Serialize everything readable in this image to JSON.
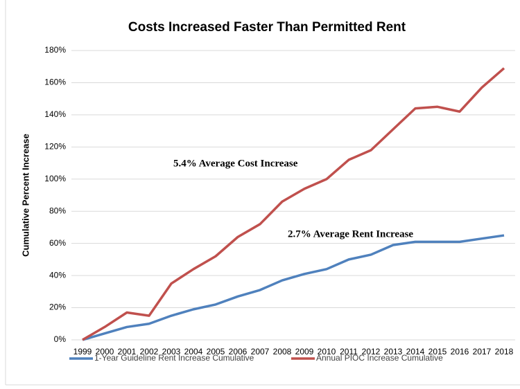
{
  "chart_data": {
    "type": "line",
    "title": "Costs Increased Faster Than Permitted Rent",
    "y_label": "Cumulative Percent Increase",
    "categories": [
      "1999",
      "2000",
      "2001",
      "2002",
      "2003",
      "2004",
      "2005",
      "2006",
      "2007",
      "2008",
      "2009",
      "2010",
      "2011",
      "2012",
      "2013",
      "2014",
      "2015",
      "2016",
      "2017",
      "2018"
    ],
    "series": [
      {
        "name": "1-Year Guideline Rent Increase Cumulative",
        "color": "#4f81bd",
        "values": [
          0,
          4,
          8,
          10,
          15,
          19,
          22,
          27,
          31,
          37,
          41,
          44,
          50,
          53,
          59,
          61,
          61,
          61,
          63,
          65
        ]
      },
      {
        "name": "Annual PIOC Increase Cumulative",
        "color": "#c0504d",
        "values": [
          0,
          8,
          17,
          15,
          35,
          44,
          52,
          64,
          72,
          86,
          94,
          100,
          112,
          118,
          131,
          144,
          145,
          142,
          157,
          169
        ]
      }
    ],
    "annotations": [
      "5.4% Average Cost Increase",
      "2.7% Average Rent Increase"
    ],
    "ylim": [
      0,
      180
    ],
    "yticks": [
      {
        "value": 0,
        "label": "0%"
      },
      {
        "value": 20,
        "label": "20%"
      },
      {
        "value": 40,
        "label": "40%"
      },
      {
        "value": 60,
        "label": "60%"
      },
      {
        "value": 80,
        "label": "80%"
      },
      {
        "value": 100,
        "label": "100%"
      },
      {
        "value": 120,
        "label": "120%"
      },
      {
        "value": 140,
        "label": "140%"
      },
      {
        "value": 160,
        "label": "160%"
      },
      {
        "value": 180,
        "label": "180%"
      }
    ],
    "grid": true,
    "legend": "bottom"
  }
}
